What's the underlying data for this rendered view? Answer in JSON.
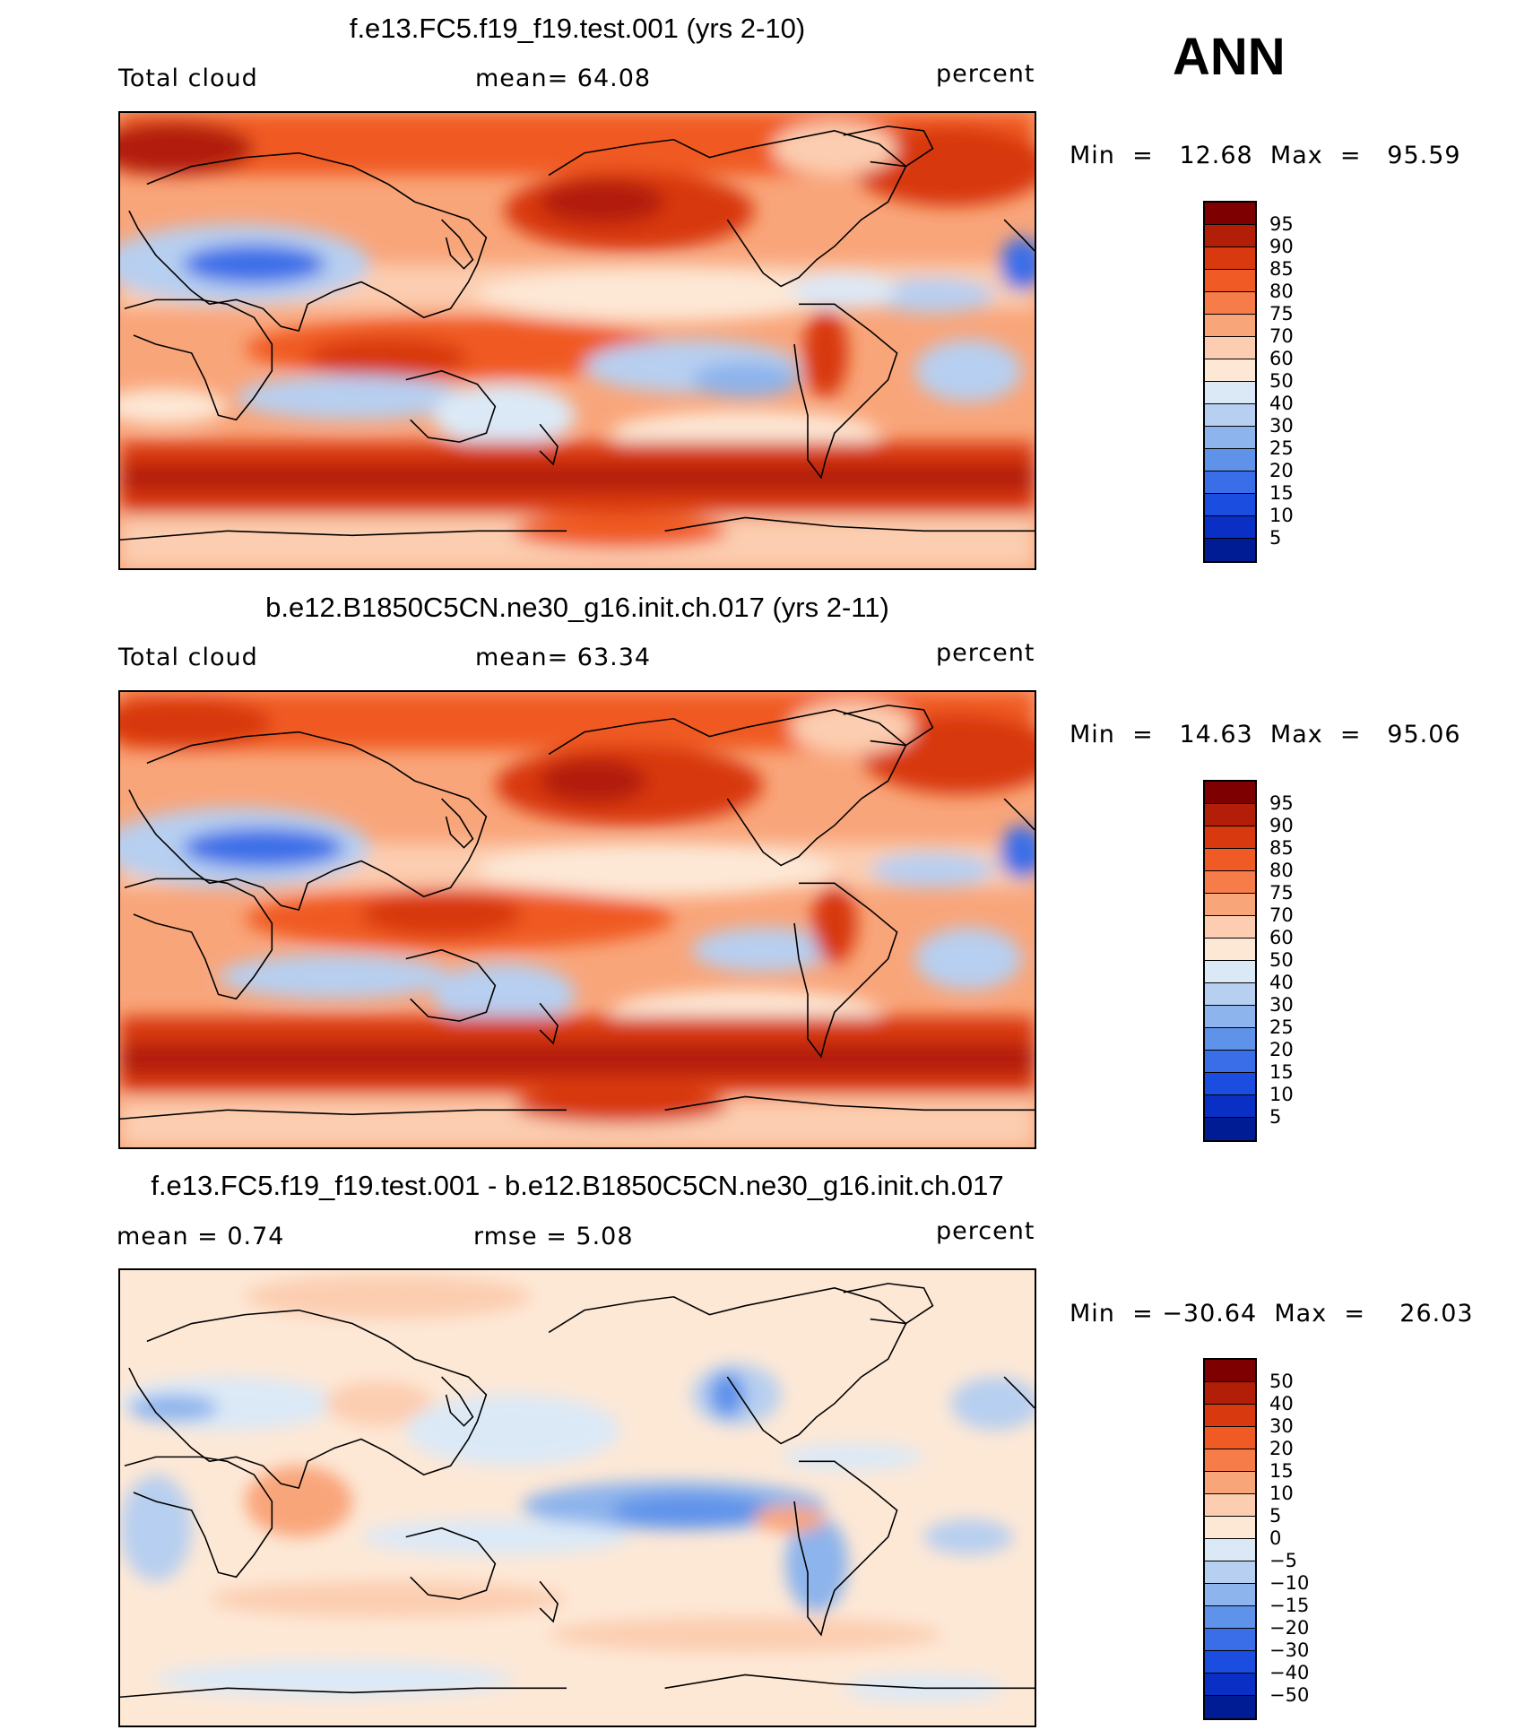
{
  "season": "ANN",
  "panels": [
    {
      "id": "model",
      "title": "f.e13.FC5.f19_f19.test.001 (yrs 2-10)",
      "left_label": "Total cloud",
      "center_label": "mean=   64.08",
      "units": "percent",
      "minmax": "Min  =   12.68  Max  =   95.59"
    },
    {
      "id": "control",
      "title": "b.e12.B1850C5CN.ne30_g16.init.ch.017 (yrs 2-11)",
      "left_label": "Total cloud",
      "center_label": "mean=   63.34",
      "units": "percent",
      "minmax": "Min  =   14.63  Max  =   95.06"
    },
    {
      "id": "difference",
      "title": "f.e13.FC5.f19_f19.test.001 - b.e12.B1850C5CN.ne30_g16.init.ch.017",
      "left_label": "mean  =     0.74",
      "center_label": "rmse  =     5.08",
      "units": "percent",
      "minmax": "Min  = −30.64  Max  =    26.03"
    }
  ],
  "colorbars": {
    "field": {
      "colors": [
        "#7f0000",
        "#b21e08",
        "#d8390e",
        "#f05a24",
        "#f67c49",
        "#f9a57a",
        "#fccdb0",
        "#fde8d6",
        "#dbe9f7",
        "#b7cff0",
        "#8db4ec",
        "#5f93ea",
        "#3a6ee8",
        "#1a4de0",
        "#0a2fc4",
        "#001c95"
      ],
      "labels": [
        "95",
        "90",
        "85",
        "80",
        "75",
        "70",
        "60",
        "50",
        "40",
        "30",
        "25",
        "20",
        "15",
        "10",
        "5"
      ]
    },
    "diff": {
      "colors": [
        "#7f0000",
        "#b21e08",
        "#d8390e",
        "#f05a24",
        "#f67c49",
        "#f9a57a",
        "#fccdb0",
        "#fde8d6",
        "#dbe9f7",
        "#b7cff0",
        "#8db4ec",
        "#5f93ea",
        "#3a6ee8",
        "#1a4de0",
        "#0a2fc4",
        "#001c95"
      ],
      "labels": [
        "50",
        "40",
        "30",
        "20",
        "15",
        "10",
        "5",
        "0",
        "−5",
        "−10",
        "−15",
        "−20",
        "−30",
        "−40",
        "−50"
      ]
    }
  }
}
